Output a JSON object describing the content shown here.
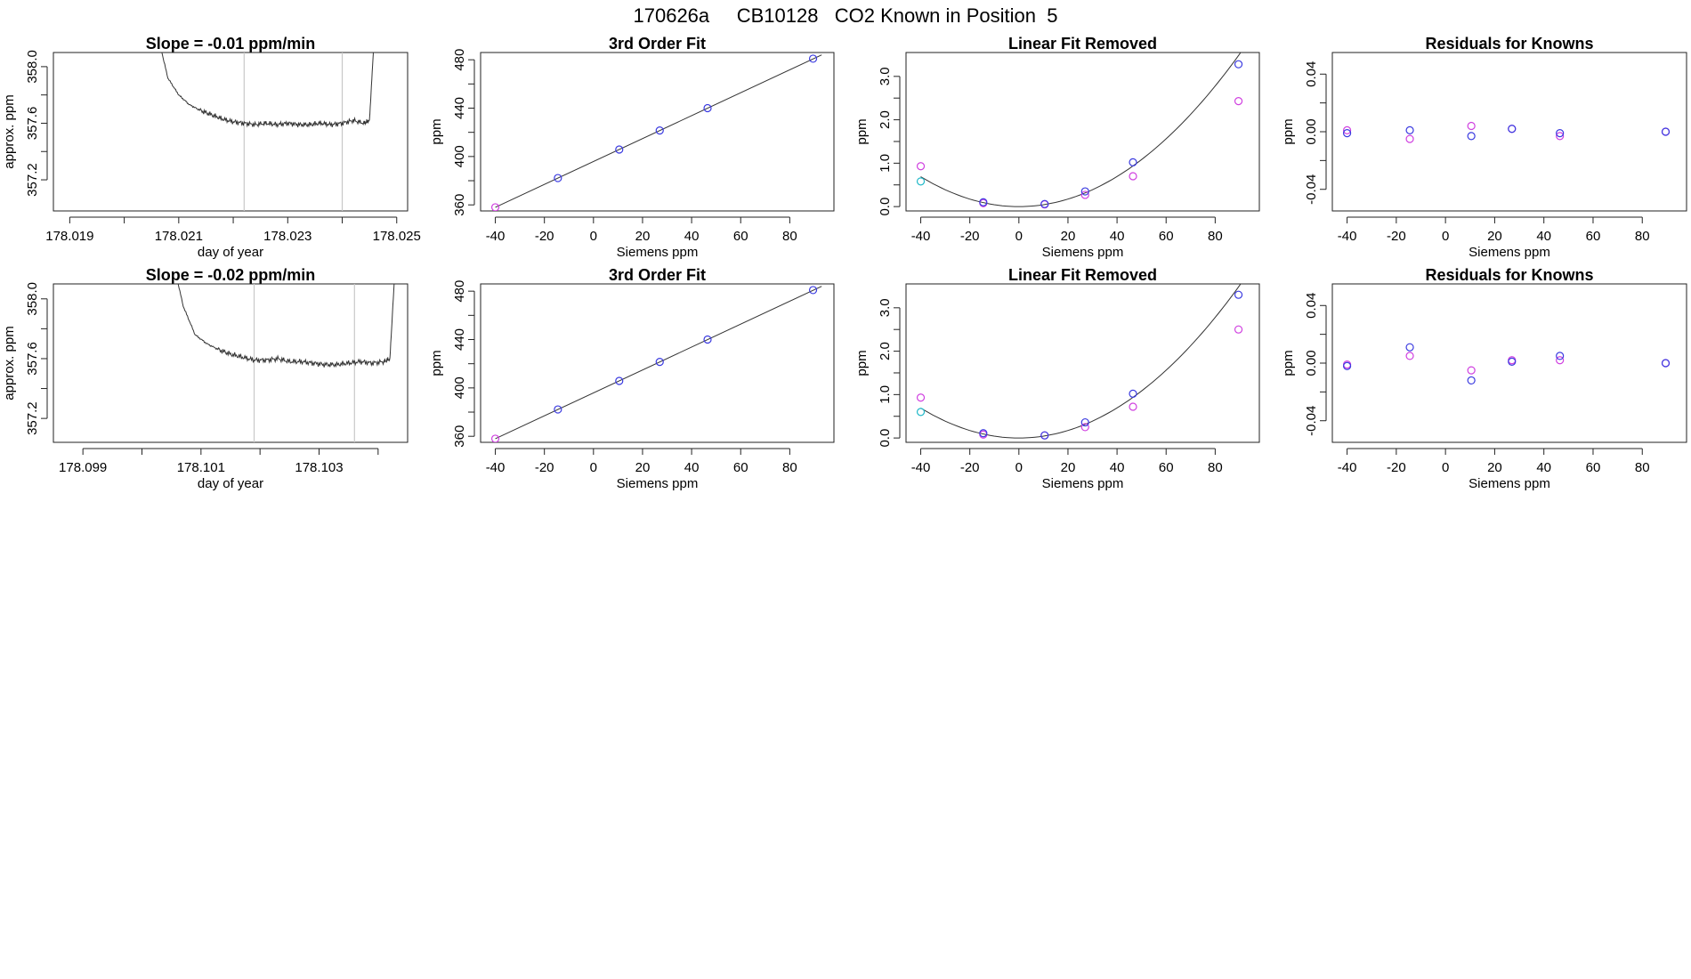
{
  "suptitle": "170626a     CB10128   CO2 Known in Position  5",
  "colors": {
    "blue": "#3a3ae0",
    "magenta": "#d040e0",
    "cyan": "#20b8c8",
    "red": "#e04040",
    "line": "#333333",
    "vline": "#c8c8c8"
  },
  "chart_data": [
    {
      "type": "line",
      "title": "Slope =  -0.01  ppm/min",
      "xlabel": "day of year",
      "ylabel": "approx. ppm",
      "xlim": [
        178.0187,
        178.0252
      ],
      "ylim": [
        356.98,
        358.1
      ],
      "xticks": [
        178.019,
        178.02,
        178.021,
        178.022,
        178.023,
        178.024,
        178.025
      ],
      "xticklabels": [
        "178.019",
        "",
        "178.021",
        "",
        "178.023",
        "",
        "178.025"
      ],
      "yticks": [
        357.2,
        357.4,
        357.6,
        357.8,
        358.0
      ],
      "yticklabels": [
        "357.2",
        "",
        "357.6",
        "",
        "358.0"
      ],
      "vlines": [
        178.0222,
        178.024
      ],
      "series": [
        {
          "name": "trace",
          "x": [
            178.0206,
            178.0208,
            178.021,
            178.0212,
            178.0214,
            178.0216,
            178.0218,
            178.022,
            178.0222,
            178.0224,
            178.0226,
            178.0228,
            178.023,
            178.0232,
            178.0234,
            178.0236,
            178.0238,
            178.024,
            178.0242,
            178.0244,
            178.0245,
            178.0246
          ],
          "y": [
            358.25,
            357.92,
            357.8,
            357.73,
            357.69,
            357.66,
            357.63,
            357.61,
            357.6,
            357.59,
            357.6,
            357.59,
            357.6,
            357.59,
            357.59,
            357.6,
            357.59,
            357.6,
            357.62,
            357.6,
            357.62,
            358.3
          ]
        }
      ]
    },
    {
      "type": "scatter",
      "title": "3rd Order Fit",
      "xlabel": "Siemens ppm",
      "ylabel": "ppm",
      "xlim": [
        -46,
        98
      ],
      "ylim": [
        355,
        486
      ],
      "xticks": [
        -40,
        -20,
        0,
        20,
        40,
        60,
        80
      ],
      "xticklabels": [
        "-40",
        "-20",
        "0",
        "20",
        "40",
        "60",
        "80"
      ],
      "yticks": [
        360,
        380,
        400,
        420,
        440,
        460,
        480
      ],
      "yticklabels": [
        "360",
        "",
        "400",
        "",
        "440",
        "",
        "480"
      ],
      "fit": {
        "x": [
          -40,
          93
        ],
        "y": [
          358.0,
          484.0
        ]
      },
      "series": [
        {
          "name": "magenta",
          "x": [
            -40
          ],
          "y": [
            358.0
          ]
        },
        {
          "name": "blue",
          "x": [
            -14.5,
            10.5,
            27,
            46.5,
            89.5
          ],
          "y": [
            382.2,
            405.8,
            421.5,
            440.0,
            480.9
          ]
        }
      ]
    },
    {
      "type": "scatter",
      "title": "Linear Fit Removed",
      "xlabel": "Siemens ppm",
      "ylabel": "ppm",
      "xlim": [
        -46,
        98
      ],
      "ylim": [
        -0.1,
        3.55
      ],
      "xticks": [
        -40,
        -20,
        0,
        20,
        40,
        60,
        80
      ],
      "xticklabels": [
        "-40",
        "-20",
        "0",
        "20",
        "40",
        "60",
        "80"
      ],
      "yticks": [
        0.0,
        0.5,
        1.0,
        1.5,
        2.0,
        2.5,
        3.0
      ],
      "yticklabels": [
        "0.0",
        "",
        "1.0",
        "",
        "2.0",
        "",
        "3.0"
      ],
      "curve_coef": [
        0.0,
        0.0,
        0.000432,
        2.55e-08
      ],
      "curve_xrange": [
        -40,
        93
      ],
      "series": [
        {
          "name": "cyan",
          "x": [
            -40
          ],
          "y": [
            0.58
          ]
        },
        {
          "name": "magenta",
          "x": [
            -40,
            -14.5,
            10.5,
            27,
            46.5,
            89.5
          ],
          "y": [
            0.93,
            0.08,
            0.05,
            0.27,
            0.7,
            2.43
          ]
        },
        {
          "name": "blue",
          "x": [
            -14.5,
            10.5,
            27,
            46.5,
            89.5
          ],
          "y": [
            0.1,
            0.06,
            0.35,
            1.02,
            3.28
          ]
        }
      ]
    },
    {
      "type": "scatter",
      "title": "Residuals for Knowns",
      "xlabel": "Siemens ppm",
      "ylabel": "ppm",
      "xlim": [
        -46,
        98
      ],
      "ylim": [
        -0.055,
        0.055
      ],
      "xticks": [
        -40,
        -20,
        0,
        20,
        40,
        60,
        80
      ],
      "xticklabels": [
        "-40",
        "-20",
        "0",
        "20",
        "40",
        "60",
        "80"
      ],
      "yticks": [
        -0.04,
        -0.02,
        0.0,
        0.02,
        0.04
      ],
      "yticklabels": [
        "-0.04",
        "",
        "0.00",
        "",
        "0.04"
      ],
      "series": [
        {
          "name": "magenta",
          "x": [
            -40,
            -14.5,
            10.5,
            27,
            46.5,
            89.5
          ],
          "y": [
            0.001,
            -0.005,
            0.004,
            0.002,
            -0.003,
            0.0
          ]
        },
        {
          "name": "blue",
          "x": [
            -40,
            -14.5,
            10.5,
            27,
            46.5,
            89.5
          ],
          "y": [
            -0.001,
            0.001,
            -0.003,
            0.002,
            -0.001,
            0.0
          ]
        }
      ]
    },
    {
      "type": "line",
      "title": "Slope =  -0.02  ppm/min",
      "xlabel": "day of year",
      "ylabel": "approx. ppm",
      "xlim": [
        178.0985,
        178.1045
      ],
      "ylim": [
        357.04,
        358.1
      ],
      "xticks": [
        178.099,
        178.1,
        178.101,
        178.102,
        178.103,
        178.104
      ],
      "xticklabels": [
        "178.099",
        "",
        "178.101",
        "",
        "178.103",
        ""
      ],
      "yticks": [
        357.2,
        357.4,
        357.6,
        357.8,
        358.0
      ],
      "yticklabels": [
        "357.2",
        "",
        "357.6",
        "",
        "358.0"
      ],
      "vlines": [
        178.1019,
        178.1036
      ],
      "series": [
        {
          "name": "trace",
          "x": [
            178.1005,
            178.1007,
            178.1009,
            178.1011,
            178.1013,
            178.1015,
            178.1017,
            178.1019,
            178.1021,
            178.1023,
            178.1025,
            178.1027,
            178.1029,
            178.1031,
            178.1033,
            178.1035,
            178.1037,
            178.1039,
            178.1041,
            178.1042,
            178.1043
          ],
          "y": [
            358.3,
            357.95,
            357.76,
            357.7,
            357.66,
            357.63,
            357.61,
            357.59,
            357.59,
            357.6,
            357.58,
            357.58,
            357.57,
            357.56,
            357.56,
            357.57,
            357.58,
            357.57,
            357.58,
            357.6,
            358.3
          ]
        }
      ]
    },
    {
      "type": "scatter",
      "title": "3rd Order Fit",
      "xlabel": "Siemens ppm",
      "ylabel": "ppm",
      "xlim": [
        -46,
        98
      ],
      "ylim": [
        355,
        486
      ],
      "xticks": [
        -40,
        -20,
        0,
        20,
        40,
        60,
        80
      ],
      "xticklabels": [
        "-40",
        "-20",
        "0",
        "20",
        "40",
        "60",
        "80"
      ],
      "yticks": [
        360,
        380,
        400,
        420,
        440,
        460,
        480
      ],
      "yticklabels": [
        "360",
        "",
        "400",
        "",
        "440",
        "",
        "480"
      ],
      "fit": {
        "x": [
          -40,
          93
        ],
        "y": [
          358.0,
          484.0
        ]
      },
      "series": [
        {
          "name": "magenta",
          "x": [
            -40
          ],
          "y": [
            358.0
          ]
        },
        {
          "name": "blue",
          "x": [
            -14.5,
            10.5,
            27,
            46.5,
            89.5
          ],
          "y": [
            382.2,
            405.8,
            421.5,
            440.0,
            480.9
          ]
        }
      ]
    },
    {
      "type": "scatter",
      "title": "Linear Fit Removed",
      "xlabel": "Siemens ppm",
      "ylabel": "ppm",
      "xlim": [
        -46,
        98
      ],
      "ylim": [
        -0.1,
        3.55
      ],
      "xticks": [
        -40,
        -20,
        0,
        20,
        40,
        60,
        80
      ],
      "xticklabels": [
        "-40",
        "-20",
        "0",
        "20",
        "40",
        "60",
        "80"
      ],
      "yticks": [
        0.0,
        0.5,
        1.0,
        1.5,
        2.0,
        2.5,
        3.0
      ],
      "yticklabels": [
        "0.0",
        "",
        "1.0",
        "",
        "2.0",
        "",
        "3.0"
      ],
      "curve_coef": [
        0.0,
        0.0,
        0.000432,
        2.55e-08
      ],
      "curve_xrange": [
        -40,
        93
      ],
      "series": [
        {
          "name": "cyan",
          "x": [
            -40
          ],
          "y": [
            0.6
          ]
        },
        {
          "name": "magenta",
          "x": [
            -40,
            -14.5,
            10.5,
            27,
            46.5,
            89.5
          ],
          "y": [
            0.93,
            0.08,
            0.06,
            0.25,
            0.72,
            2.5
          ]
        },
        {
          "name": "blue",
          "x": [
            -14.5,
            10.5,
            27,
            46.5,
            89.5
          ],
          "y": [
            0.11,
            0.06,
            0.36,
            1.02,
            3.3
          ]
        }
      ]
    },
    {
      "type": "scatter",
      "title": "Residuals for Knowns",
      "xlabel": "Siemens ppm",
      "ylabel": "ppm",
      "xlim": [
        -46,
        98
      ],
      "ylim": [
        -0.055,
        0.055
      ],
      "xticks": [
        -40,
        -20,
        0,
        20,
        40,
        60,
        80
      ],
      "xticklabels": [
        "-40",
        "-20",
        "0",
        "20",
        "40",
        "60",
        "80"
      ],
      "yticks": [
        -0.04,
        -0.02,
        0.0,
        0.02,
        0.04
      ],
      "yticklabels": [
        "-0.04",
        "",
        "0.00",
        "",
        "0.04"
      ],
      "series": [
        {
          "name": "magenta",
          "x": [
            -40,
            -14.5,
            10.5,
            27,
            46.5,
            89.5
          ],
          "y": [
            -0.001,
            0.005,
            -0.005,
            0.002,
            0.002,
            0.0
          ]
        },
        {
          "name": "blue",
          "x": [
            -40,
            -14.5,
            10.5,
            27,
            46.5,
            89.5
          ],
          "y": [
            -0.002,
            0.011,
            -0.012,
            0.001,
            0.005,
            0.0
          ]
        }
      ]
    }
  ]
}
